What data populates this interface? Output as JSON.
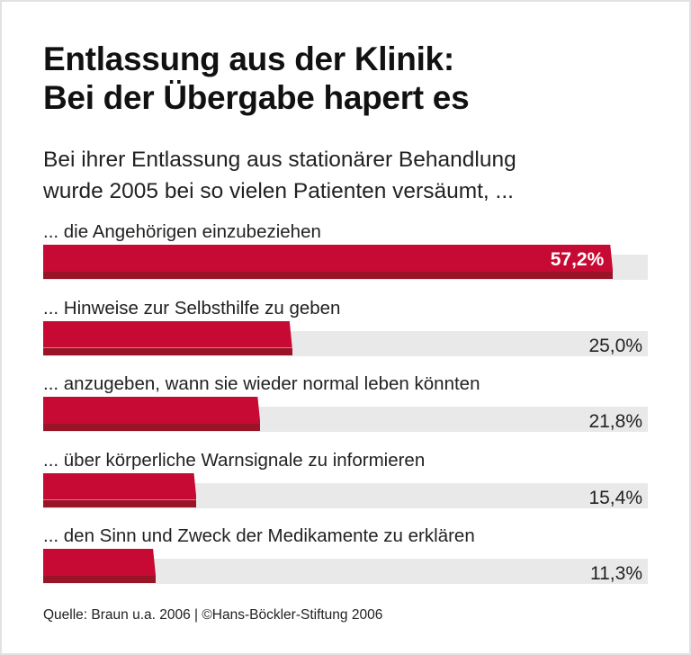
{
  "chart_data": {
    "type": "bar",
    "orientation": "horizontal",
    "title": "Entlassung aus der Klinik:\nBei der Übergabe hapert es",
    "title_lines": [
      "Entlassung aus der Klinik:",
      "Bei der Übergabe hapert es"
    ],
    "subtitle_lines": [
      "Bei ihrer Entlassung aus stationärer Behandlung",
      "wurde 2005 bei so vielen Patienten versäumt, ..."
    ],
    "categories": [
      "... die Angehörigen einzubeziehen",
      "... Hinweise zur Selbsthilfe zu geben",
      "... anzugeben, wann sie wieder normal leben könnten",
      "... über körperliche Warnsignale zu informieren",
      "... den Sinn und Zweck der Medikamente zu erklären"
    ],
    "values": [
      57.2,
      25.0,
      21.8,
      15.4,
      11.3
    ],
    "value_labels": [
      "57,2%",
      "25,0%",
      "21,8%",
      "15,4%",
      "11,3%"
    ],
    "unit": "%",
    "xlim": [
      0,
      60.7
    ],
    "grid": false,
    "colors": {
      "bar": "#c70a33",
      "bar_shadow": "#9a1428",
      "track": "#e9e9e9"
    },
    "source": "Quelle: Braun u.a. 2006 | ©Hans-Böckler-Stiftung 2006"
  }
}
